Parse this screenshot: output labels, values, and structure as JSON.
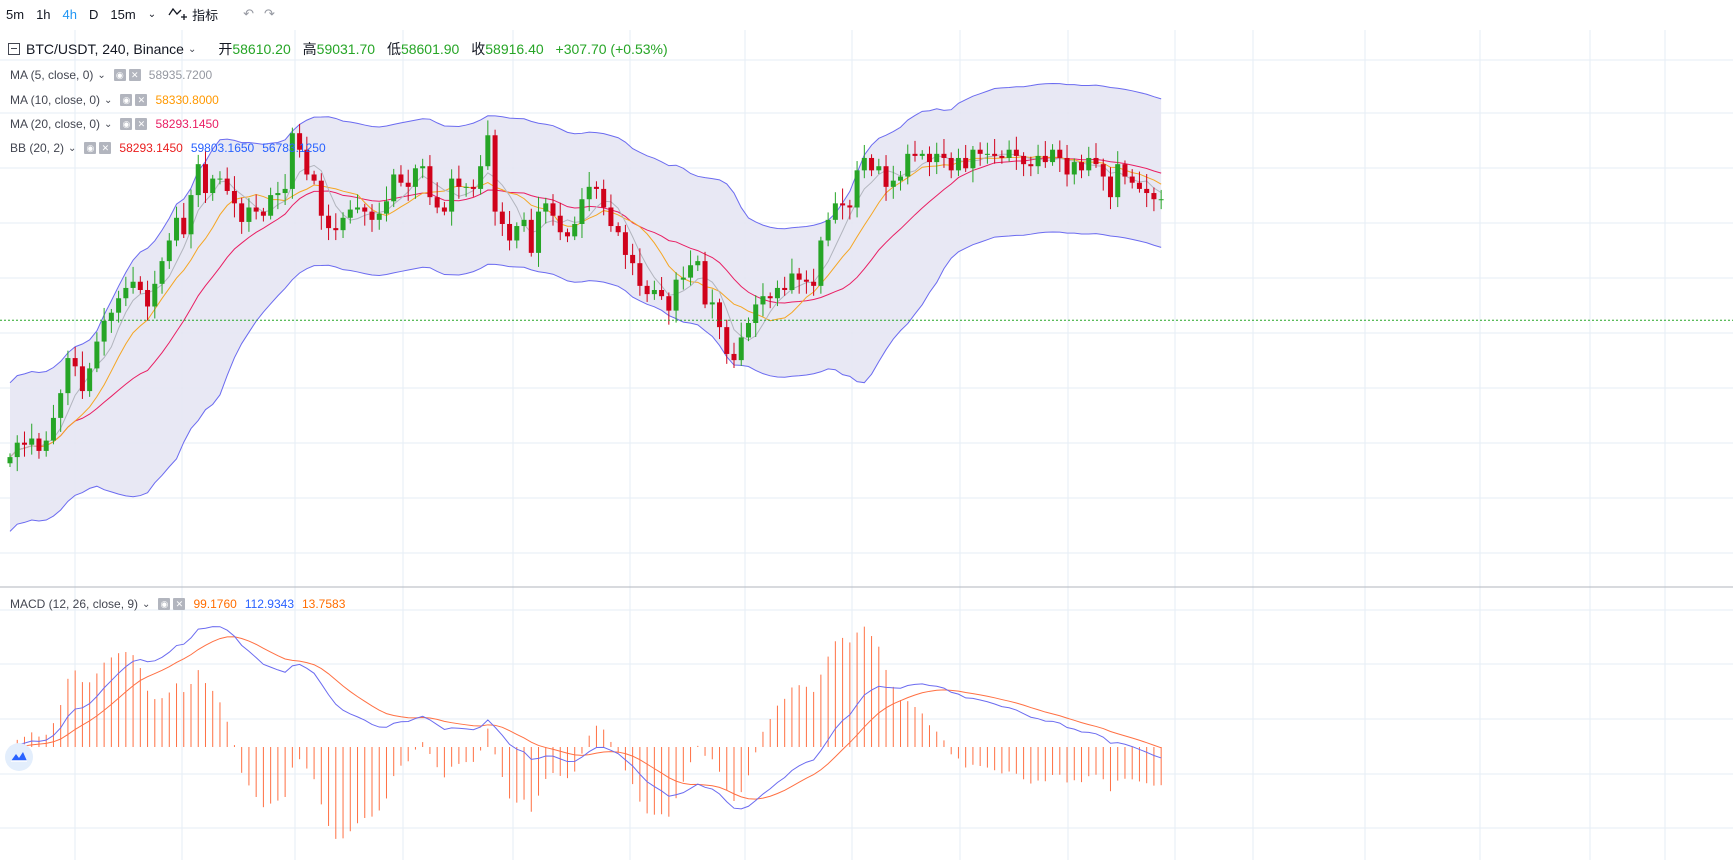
{
  "toolbar": {
    "intervals": [
      "5m",
      "1h",
      "4h",
      "D",
      "15m"
    ],
    "active_interval": "4h",
    "indicators_label": "指标"
  },
  "main_legend": {
    "symbol": "BTC/USDT, 240, Binance",
    "open_label": "开",
    "open": "58610.20",
    "high_label": "高",
    "high": "59031.70",
    "low_label": "低",
    "low": "58601.90",
    "close_label": "收",
    "close": "58916.40",
    "change": "+307.70 (+0.53%)"
  },
  "studies": [
    {
      "name": "MA (5, close, 0)",
      "values": [
        "58935.7200"
      ],
      "colors": [
        "#9598a1"
      ]
    },
    {
      "name": "MA (10, close, 0)",
      "values": [
        "58330.8000"
      ],
      "colors": [
        "#ff9800"
      ]
    },
    {
      "name": "MA (20, close, 0)",
      "values": [
        "58293.1450"
      ],
      "colors": [
        "#e91e63"
      ]
    },
    {
      "name": "BB (20, 2)",
      "values": [
        "58293.1450",
        "59803.1650",
        "56783.1250"
      ],
      "colors": [
        "#e91e1e",
        "#2962ff",
        "#2962ff"
      ]
    }
  ],
  "macd_legend": {
    "name": "MACD (12, 26, close, 9)",
    "values": [
      "99.1760",
      "112.9343",
      "13.7583"
    ],
    "colors": [
      "#ff6d00",
      "#2962ff",
      "#ff6d00"
    ]
  },
  "colors": {
    "up": "#26a526",
    "down": "#d0021b",
    "ma5": "#b2b5be",
    "ma10": "#f5a623",
    "ma20": "#e91e63",
    "bb_band": "#6b6bf0",
    "bb_fill": "#e6e6f3",
    "macd_line": "#6b6bf0",
    "signal_line": "#ff7043",
    "hist": "#ff7043",
    "grid": "#e6eef5",
    "last_price_line": "#26a526"
  },
  "chart_data": [
    {
      "type": "candlestick",
      "series": [
        {
          "name": "BTC/USDT",
          "values": [
            55600,
            55950,
            55900,
            56050,
            55750,
            56000,
            56550,
            57150,
            58000,
            57800,
            57200,
            57750,
            58400,
            58900,
            59100,
            59450,
            59700,
            59850,
            59650,
            59250,
            59800,
            60350,
            60850,
            61400,
            61000,
            61950,
            62700,
            62000,
            62350,
            62350,
            62050,
            61750,
            61300,
            61650,
            61550,
            61450,
            61950,
            62000,
            62100,
            63450,
            63050,
            62450,
            62300,
            61450,
            61150,
            61100,
            61400,
            61600,
            61650,
            61550,
            61350,
            61500,
            61800,
            62450,
            62250,
            62150,
            62600,
            62650,
            61900,
            61650,
            61550,
            62350,
            62150,
            62150,
            62100,
            62650,
            63400,
            61550,
            61250,
            60850,
            61200,
            61350,
            60550,
            61550,
            61750,
            61450,
            61050,
            60950,
            61250,
            61850,
            62150,
            62100,
            61650,
            61200,
            61050,
            60500,
            60300,
            59750,
            59550,
            59650,
            59500,
            59150,
            59900,
            59950,
            60250,
            60350,
            59300,
            59350,
            58750,
            58100,
            57950,
            58500,
            58850,
            59300,
            59500,
            59450,
            59700,
            59650,
            60050,
            59900,
            59850,
            59750,
            60850,
            61350,
            61750,
            61700,
            61650,
            62550,
            62850,
            62550,
            62650,
            62150,
            62300,
            62400,
            62950,
            62900,
            62950,
            62750,
            62950,
            62850,
            62550,
            62850,
            62600,
            63050,
            62950,
            62950,
            62900,
            62850,
            63050,
            62900,
            62700,
            62650,
            62900,
            62750,
            63050,
            62850,
            62450,
            62750,
            62550,
            62850,
            62700,
            62400,
            61900,
            62700,
            62400,
            62250,
            62100,
            62000,
            61850,
            61850
          ]
        }
      ],
      "indicators": [
        "MA 5",
        "MA 10",
        "MA 20",
        "BB (20, 2)"
      ],
      "last_price": 58916.4
    },
    {
      "type": "line",
      "series": [
        {
          "name": "MACD"
        },
        {
          "name": "Signal"
        },
        {
          "name": "Histogram"
        }
      ]
    }
  ]
}
